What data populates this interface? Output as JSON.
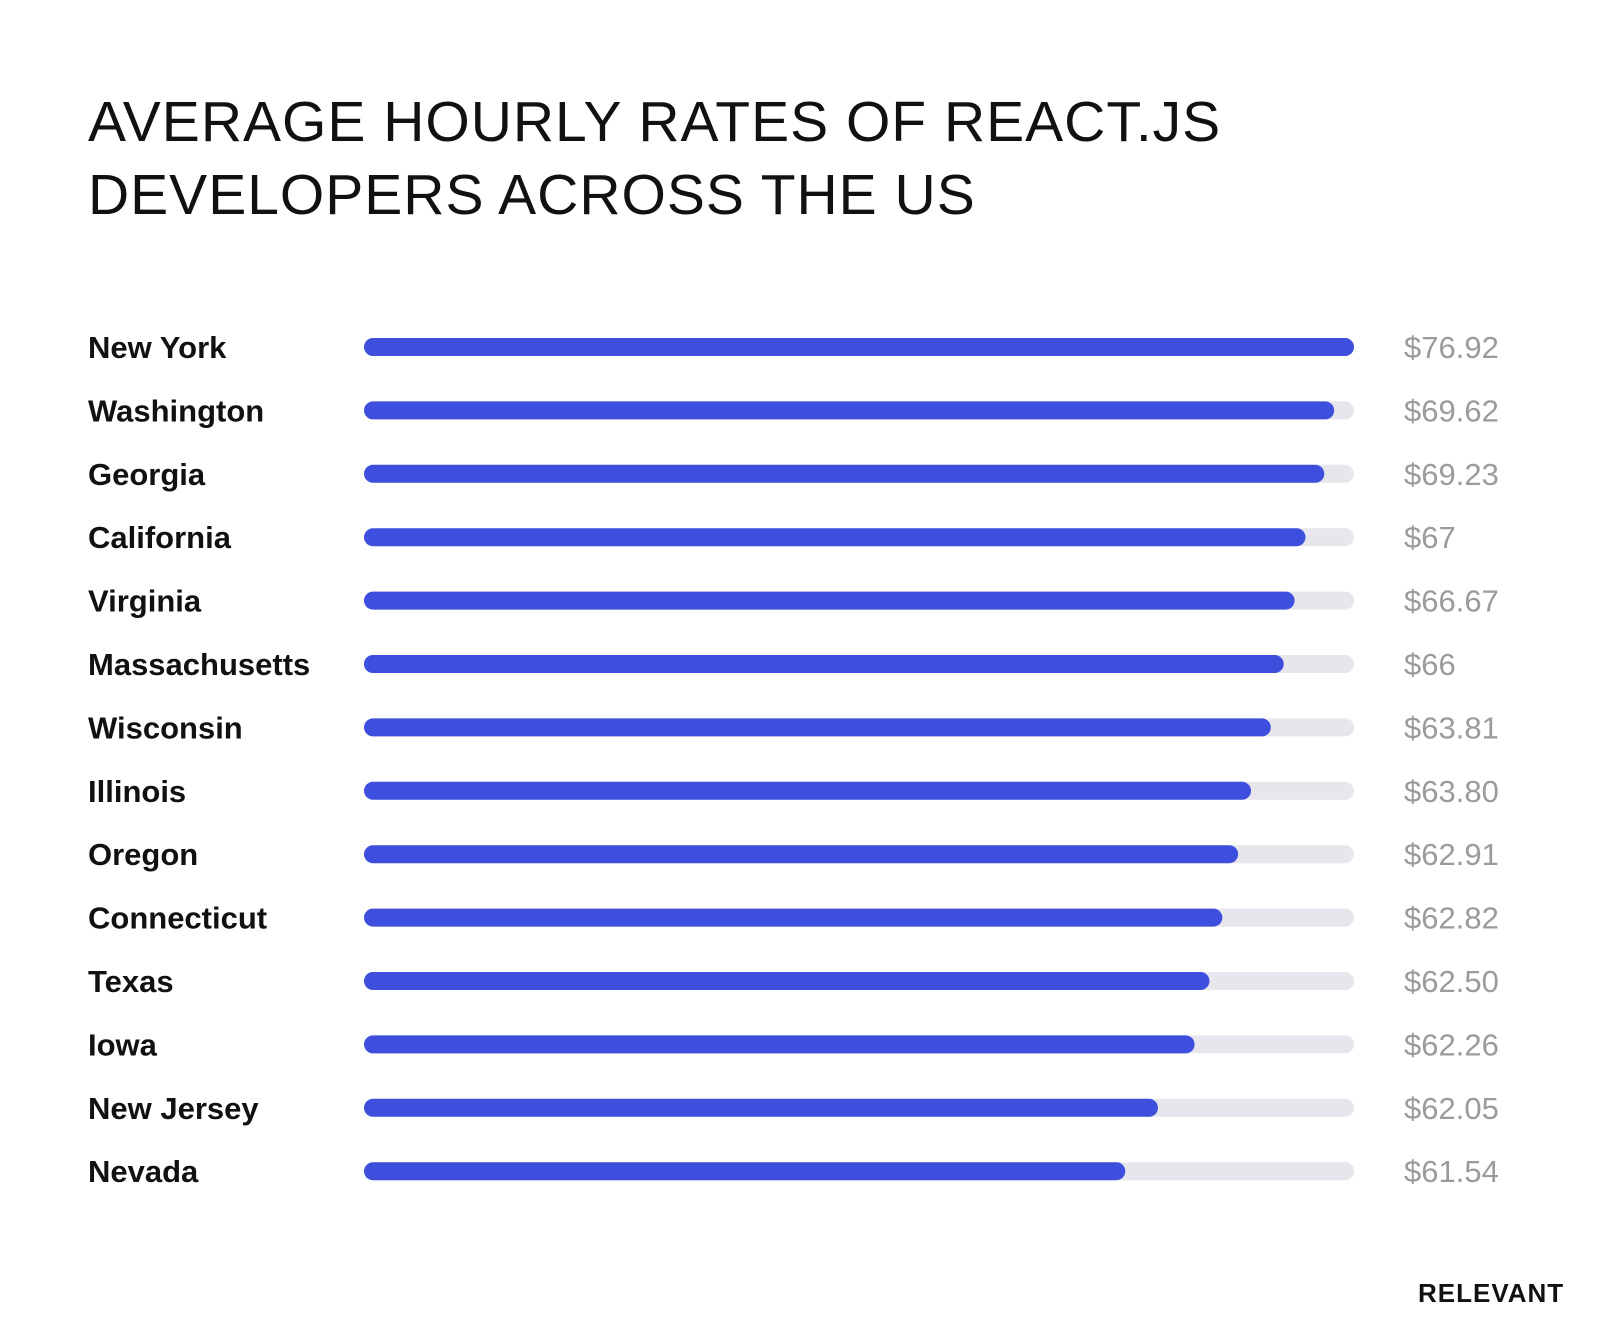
{
  "chart_data": {
    "type": "bar",
    "orientation": "horizontal",
    "title_lines": [
      "AVERAGE HOURLY RATES OF REACT.JS",
      "DEVELOPERS ACROSS THE US"
    ],
    "categories": [
      "New York",
      "Washington",
      "Georgia",
      "California",
      "Virginia",
      "Massachusetts",
      "Wisconsin",
      "Illinois",
      "Oregon",
      "Connecticut",
      "Texas",
      "Iowa",
      "New Jersey",
      "Nevada"
    ],
    "values": [
      76.92,
      69.62,
      69.23,
      67,
      66.67,
      66,
      63.81,
      63.8,
      62.91,
      62.82,
      62.5,
      62.26,
      62.05,
      61.54
    ],
    "value_labels": [
      "$76.92",
      "$69.62",
      "$69.23",
      "$67",
      "$66.67",
      "$66",
      "$63.81",
      "$63.80",
      "$62.91",
      "$62.82",
      "$62.50",
      "$62.26",
      "$62.05",
      "$61.54"
    ],
    "bar_fill_fractions": [
      1.0,
      0.98,
      0.97,
      0.951,
      0.94,
      0.929,
      0.916,
      0.896,
      0.883,
      0.867,
      0.854,
      0.839,
      0.802,
      0.769
    ],
    "xlim": [
      0,
      76.92
    ],
    "bar_color": "#3d4fdc",
    "track_color": "#e6e6ec",
    "value_color": "#9b9b9b",
    "label_color": "#111111",
    "grid": false
  },
  "brand": "RELEVANT"
}
